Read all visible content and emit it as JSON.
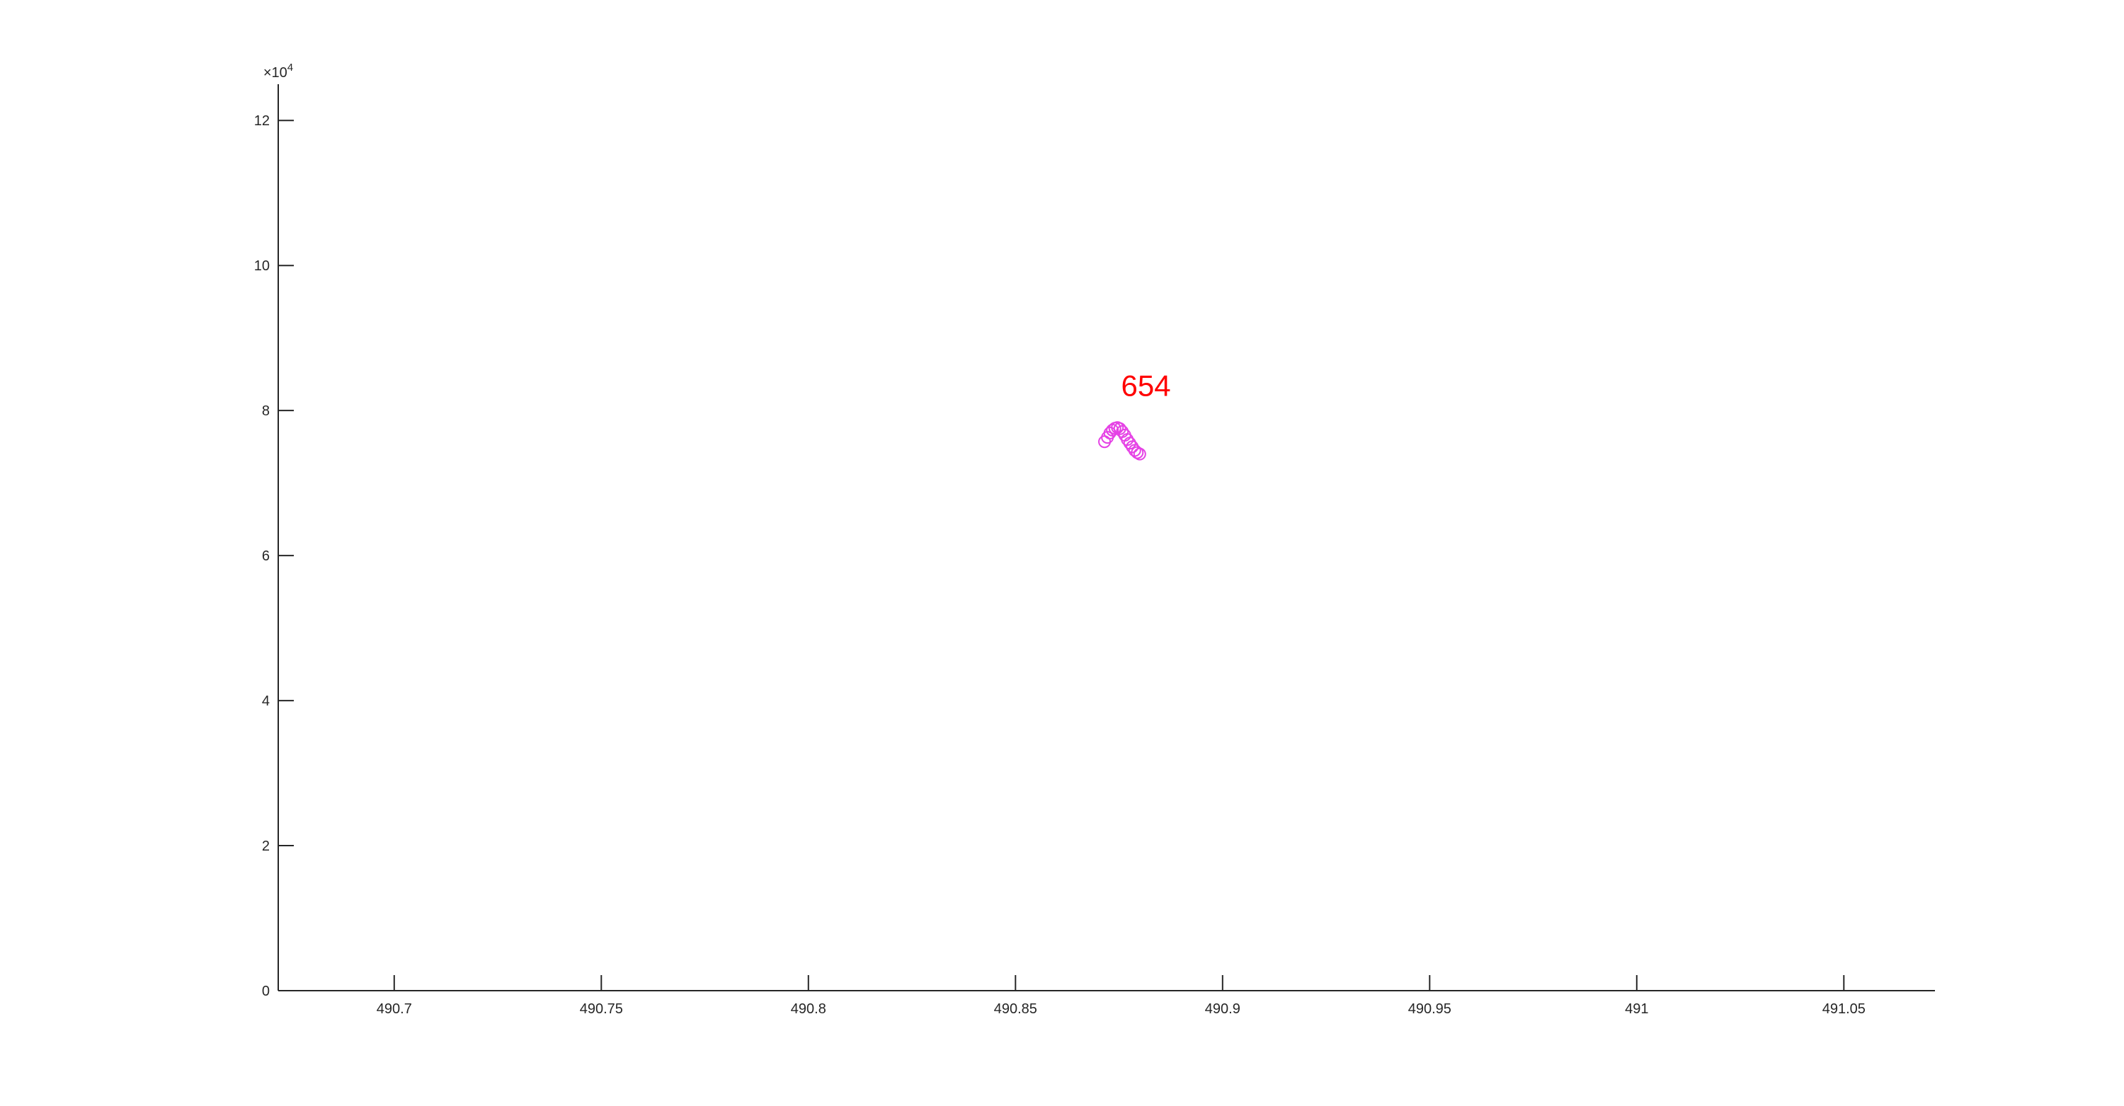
{
  "chart_data": {
    "type": "scatter",
    "title": "",
    "xlabel": "",
    "ylabel": "",
    "xlim": [
      490.672,
      491.072
    ],
    "ylim": [
      0,
      125000
    ],
    "x_ticks": [
      490.7,
      490.75,
      490.8,
      490.85,
      490.9,
      490.95,
      491,
      491.05
    ],
    "x_tick_labels": [
      "490.7",
      "490.75",
      "490.8",
      "490.85",
      "490.9",
      "490.95",
      "491",
      "491.05"
    ],
    "y_ticks": [
      0,
      20000,
      40000,
      60000,
      80000,
      100000,
      120000
    ],
    "y_tick_labels": [
      "0",
      "2",
      "4",
      "6",
      "8",
      "10",
      "12"
    ],
    "y_exponent_label": "×10",
    "y_exponent_power": "4",
    "grid": false,
    "series": [
      {
        "marker": "circle",
        "color": "#E542E5",
        "x": [
          490.8715,
          490.8722,
          490.8728,
          490.8734,
          490.874,
          490.8746,
          490.8752,
          490.8758,
          490.8764,
          490.877,
          490.8776,
          490.8782,
          490.8788,
          490.8794,
          490.88
        ],
        "y": [
          75700,
          76300,
          76900,
          77300,
          77550,
          77650,
          77500,
          77100,
          76600,
          76000,
          75500,
          75000,
          74500,
          74200,
          74000
        ]
      }
    ],
    "annotations": [
      {
        "text": "654",
        "x": 490.8815,
        "y": 82000,
        "color": "#FF0000"
      }
    ]
  }
}
